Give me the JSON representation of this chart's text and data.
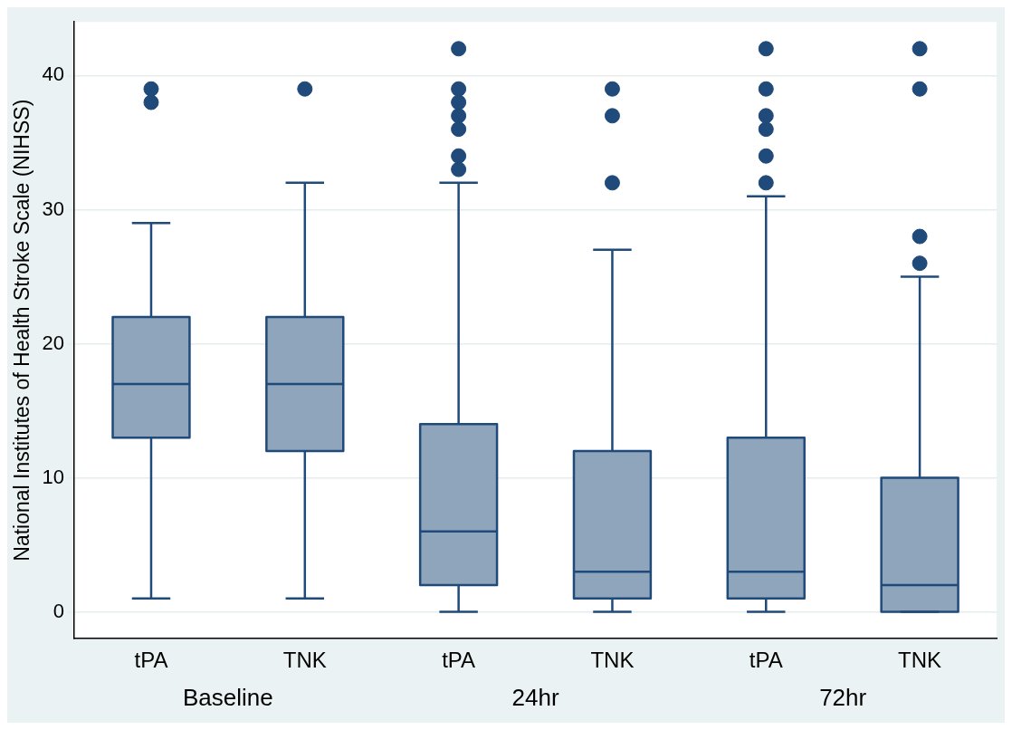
{
  "chart_data": {
    "type": "box",
    "ylabel": "National Institutes of Health Stroke Scale (NIHSS)",
    "categories": [
      "tPA",
      "TNK",
      "tPA",
      "TNK",
      "tPA",
      "TNK"
    ],
    "annotations": [
      "Baseline",
      "24hr",
      "72hr"
    ],
    "ylim": [
      -2,
      44
    ],
    "yticks": [
      0,
      10,
      20,
      30,
      40
    ],
    "grid": "y",
    "series": [
      {
        "color": "#8ea5bb",
        "boxes": [
          {
            "low": 1,
            "q1": 13,
            "median": 17,
            "q3": 22,
            "high": 29,
            "outliers": [
              38,
              39
            ]
          },
          {
            "low": 1,
            "q1": 12,
            "median": 17,
            "q3": 22,
            "high": 32,
            "outliers": [
              39
            ]
          },
          {
            "low": 0,
            "q1": 2,
            "median": 6,
            "q3": 14,
            "high": 32,
            "outliers": [
              33,
              34,
              36,
              37,
              38,
              39,
              42
            ]
          },
          {
            "low": 0,
            "q1": 1,
            "median": 3,
            "q3": 12,
            "high": 27,
            "outliers": [
              32,
              37,
              39
            ]
          },
          {
            "low": 0,
            "q1": 1,
            "median": 3,
            "q3": 13,
            "high": 31,
            "outliers": [
              32,
              34,
              36,
              37,
              39,
              42
            ]
          },
          {
            "low": 0,
            "q1": 0,
            "median": 2,
            "q3": 10,
            "high": 25,
            "outliers": [
              26,
              28,
              39,
              42
            ]
          }
        ]
      }
    ]
  }
}
